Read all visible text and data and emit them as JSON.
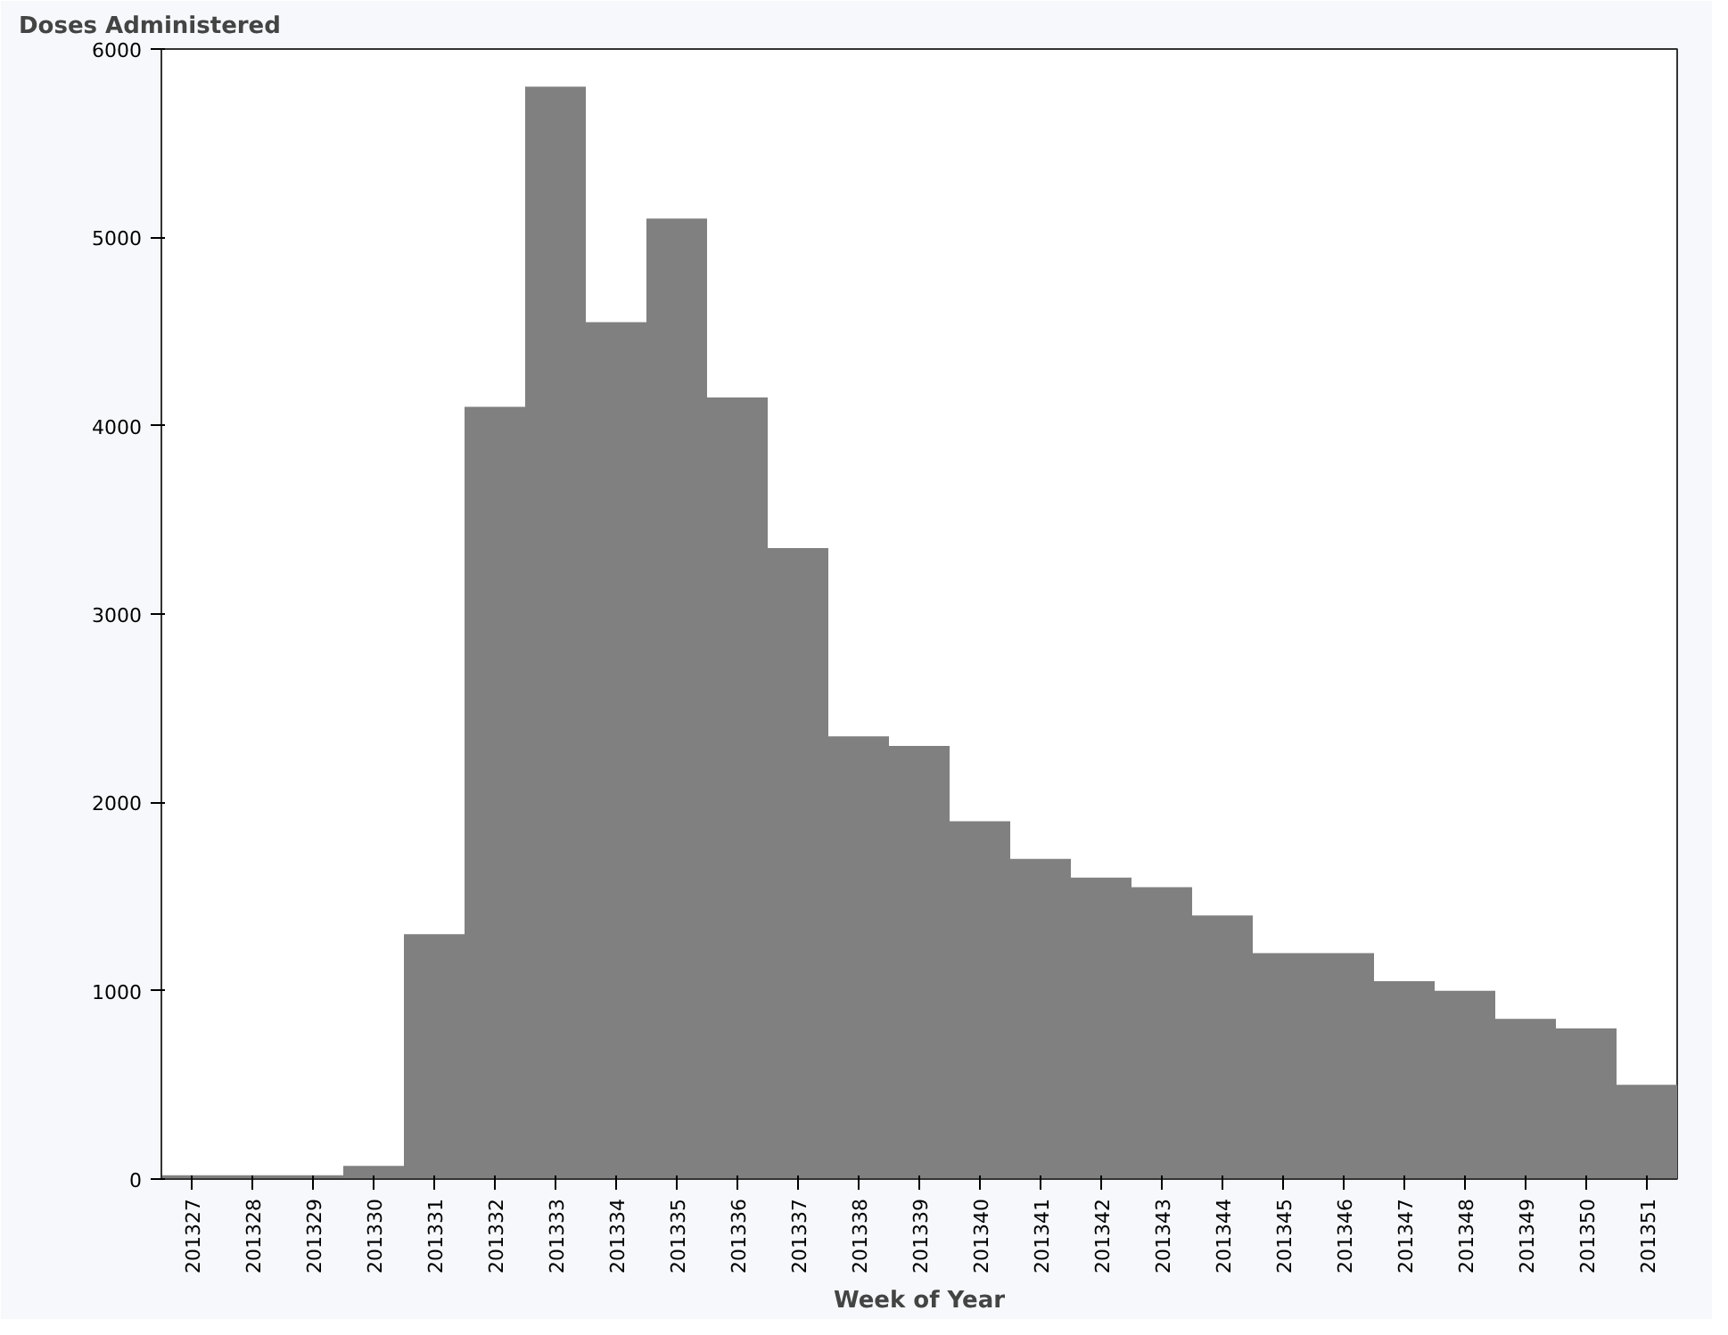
{
  "chart_data": {
    "type": "bar",
    "ylabel": "Doses Administered",
    "xlabel": "Week of Year",
    "categories": [
      "201327",
      "201328",
      "201329",
      "201330",
      "201331",
      "201332",
      "201333",
      "201334",
      "201335",
      "201336",
      "201337",
      "201338",
      "201339",
      "201340",
      "201341",
      "201342",
      "201343",
      "201344",
      "201345",
      "201346",
      "201347",
      "201348",
      "201349",
      "201350",
      "201351"
    ],
    "values": [
      20,
      20,
      20,
      70,
      1300,
      4100,
      5800,
      4550,
      5100,
      4150,
      3350,
      2350,
      2300,
      1900,
      1700,
      1600,
      1550,
      1400,
      1200,
      1200,
      1050,
      1000,
      850,
      800,
      500
    ],
    "color": "#808080",
    "ylim": [
      0,
      6000
    ],
    "yticks": [
      0,
      1000,
      2000,
      3000,
      4000,
      5000,
      6000
    ],
    "grid": false
  }
}
